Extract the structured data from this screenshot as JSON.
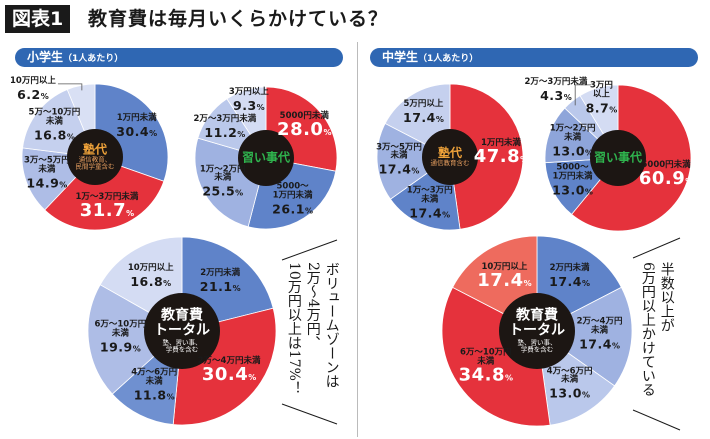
{
  "title": {
    "badge": "図表1",
    "text": "教育費は毎月いくらかけている？"
  },
  "panels": [
    {
      "label": "小学生",
      "sub": "（1人あたり）",
      "callout": "ボリュームゾーンは\n2万～4万円、\n10万円以上は17%！"
    },
    {
      "label": "中学生",
      "sub": "（1人あたり）",
      "callout": "半数以上が\n6万円以上かけている"
    }
  ],
  "colors": {
    "red": "#e5323c",
    "salmon": "#ee6b5e",
    "blue": "#5f83c9",
    "blue2": "#8ea5da",
    "blue3": "#aebde6",
    "blue4": "#c5d0ee",
    "blue5": "#d9e0f4",
    "center_bg": "#1c1613",
    "juku_title": "#f0a33a",
    "lesson_title": "#2fb44e"
  },
  "chart_data": [
    {
      "type": "pie",
      "title": "塾代",
      "subtitle": "通信教育、\n民間学童含む",
      "title_color": "#f0a33a",
      "categories": [
        "1万円未満",
        "1万～3万円未満",
        "3万～5万円\n未満",
        "5万～10万円\n未満",
        "10万円以上"
      ],
      "values": [
        30.4,
        31.7,
        14.9,
        16.8,
        6.2
      ],
      "colors": [
        "#5f83c9",
        "#e5323c",
        "#aebde6",
        "#c5d0ee",
        "#d9e0f4"
      ]
    },
    {
      "type": "pie",
      "title": "習い事代",
      "subtitle": "",
      "title_color": "#2fb44e",
      "categories": [
        "5000円未満",
        "5000～\n1万円未満",
        "1万～2万円\n未満",
        "2万～3万円未満",
        "3万円以上"
      ],
      "values": [
        28.0,
        26.1,
        25.5,
        11.2,
        9.3
      ],
      "colors": [
        "#e5323c",
        "#5f83c9",
        "#9fb2e1",
        "#bac8eb",
        "#d4dcf3"
      ]
    },
    {
      "type": "pie",
      "title": "塾代",
      "subtitle": "通信教育含む",
      "title_color": "#f0a33a",
      "categories": [
        "1万円未満",
        "1万～3万円\n未満",
        "3万～5万円\n未満",
        "5万円以上"
      ],
      "values": [
        47.8,
        17.4,
        17.4,
        17.4
      ],
      "colors": [
        "#e5323c",
        "#5f83c9",
        "#9fb2e1",
        "#c5d0ee"
      ]
    },
    {
      "type": "pie",
      "title": "習い事代",
      "subtitle": "",
      "title_color": "#2fb44e",
      "categories": [
        "5000円未満",
        "5000～\n1万円未満",
        "1万～2万円\n未満",
        "2万～3万円未満",
        "3万円\n以上"
      ],
      "values": [
        60.9,
        13.0,
        13.0,
        4.3,
        8.7
      ],
      "colors": [
        "#e5323c",
        "#5f83c9",
        "#8ea5da",
        "#bac8eb",
        "#d4dcf3"
      ]
    },
    {
      "type": "pie",
      "title": "教育費\nトータル",
      "subtitle": "塾、習い事、\n学費を含む",
      "title_color": "#ffffff",
      "categories": [
        "2万円未満",
        "2万～4万円未満",
        "4万～6万円\n未満",
        "6万～10万円\n未満",
        "10万円以上"
      ],
      "values": [
        21.1,
        30.4,
        11.8,
        19.9,
        16.8
      ],
      "colors": [
        "#5f83c9",
        "#e5323c",
        "#6f90d0",
        "#aebde6",
        "#d4dcf3"
      ]
    },
    {
      "type": "pie",
      "title": "教育費\nトータル",
      "subtitle": "塾、習い事、\n学費を含む",
      "title_color": "#ffffff",
      "categories": [
        "2万円未満",
        "2万～4万円\n未満",
        "4万～6万円\n未満",
        "6万～10万円\n未満",
        "10万円以上"
      ],
      "values": [
        17.4,
        17.4,
        13.0,
        34.8,
        17.4
      ],
      "colors": [
        "#5f83c9",
        "#9fb2e1",
        "#bac8eb",
        "#e5323c",
        "#ee6b5e"
      ]
    }
  ]
}
